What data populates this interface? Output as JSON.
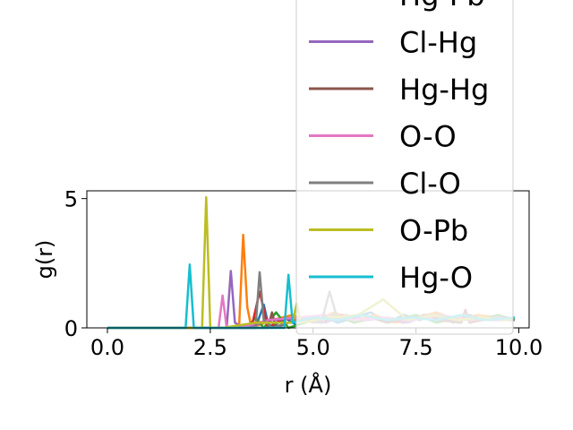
{
  "chart_data": {
    "type": "line",
    "title": "",
    "xlabel": "r (Å)",
    "ylabel": "g(r)",
    "xlim": [
      -0.5,
      10.25
    ],
    "ylim": [
      0,
      5.3
    ],
    "xticks": [
      0.0,
      2.5,
      5.0,
      7.5,
      10.0
    ],
    "xtick_labels": [
      "0.0",
      "2.5",
      "5.0",
      "7.5",
      "10.0"
    ],
    "yticks": [
      0,
      5
    ],
    "ytick_labels": [
      "0",
      "5"
    ],
    "grid": false,
    "legend_position": "top-right",
    "series": [
      {
        "name": "",
        "color": "#1f77b4",
        "x": [
          0,
          3.6,
          3.8,
          3.9,
          4.0,
          4.3,
          4.6,
          4.9,
          5.2,
          5.6,
          6.0,
          6.4,
          6.8,
          7.2,
          7.6,
          8.0,
          8.4,
          8.8,
          9.2,
          9.6,
          9.9
        ],
        "y": [
          0,
          0,
          0.9,
          0.2,
          0,
          0.4,
          0.1,
          0.3,
          0.5,
          0.2,
          0.4,
          0.6,
          0.2,
          0.5,
          0.3,
          0.6,
          0.2,
          0.5,
          0.3,
          0.4,
          0.3
        ]
      },
      {
        "name": "",
        "color": "#ff7f0e",
        "x": [
          0,
          3.2,
          3.3,
          3.4,
          3.5,
          4.0,
          4.5,
          5.0,
          5.5,
          6.0,
          6.5,
          7.0,
          7.5,
          8.0,
          8.5,
          9.0,
          9.5,
          9.9
        ],
        "y": [
          0,
          0,
          3.6,
          0.8,
          0,
          0.3,
          0.5,
          0.2,
          0.6,
          0.3,
          0.5,
          0.2,
          0.4,
          0.6,
          0.3,
          0.5,
          0.4,
          0.3
        ]
      },
      {
        "name": "",
        "color": "#2ca02c",
        "x": [
          0,
          3.4,
          3.6,
          3.8,
          4.1,
          4.4,
          5.0,
          5.5,
          6.0,
          6.5,
          7.0,
          7.5,
          8.0,
          8.5,
          9.0,
          9.5,
          9.9
        ],
        "y": [
          0,
          0,
          0.4,
          0,
          0.6,
          0,
          0.3,
          0.5,
          0.2,
          0.4,
          0.3,
          0.5,
          0.2,
          0.4,
          0.3,
          0.5,
          0.3
        ]
      },
      {
        "name": "Hg-Pb",
        "color": "#d62728",
        "x": [
          0,
          3.5,
          3.7,
          3.9,
          4.2,
          4.7,
          5.2,
          5.7,
          6.2,
          6.7,
          7.2,
          7.7,
          8.2,
          8.7,
          9.2,
          9.7,
          9.9
        ],
        "y": [
          0,
          0,
          1.4,
          0,
          0.3,
          0.4,
          0.2,
          0.5,
          0.3,
          0.4,
          0.2,
          0.5,
          0.3,
          0.4,
          0.3,
          0.4,
          0.3
        ]
      },
      {
        "name": "Cl-Hg",
        "color": "#9467bd",
        "x": [
          0,
          2.9,
          3.0,
          3.1,
          3.3,
          4.0,
          4.8,
          5.3,
          5.8,
          6.3,
          6.8,
          7.3,
          7.8,
          8.3,
          8.8,
          9.3,
          9.9
        ],
        "y": [
          0,
          0,
          2.2,
          0.2,
          0,
          0.3,
          0.4,
          0.2,
          0.5,
          0.3,
          0.4,
          0.2,
          0.5,
          0.3,
          0.4,
          0.3,
          0.3
        ]
      },
      {
        "name": "Hg-Hg",
        "color": "#8c564b",
        "x": [
          0,
          3.9,
          4.0,
          4.1,
          4.4,
          5.0,
          5.6,
          6.2,
          6.8,
          7.4,
          8.0,
          8.6,
          8.7,
          8.8,
          9.4,
          9.9
        ],
        "y": [
          0,
          0,
          0.6,
          0,
          0.2,
          0.4,
          0.3,
          0.5,
          0.2,
          0.4,
          0.3,
          0.2,
          0.7,
          0.2,
          0.4,
          0.3
        ]
      },
      {
        "name": "O-O",
        "color": "#e377c2",
        "x": [
          0,
          2.7,
          2.8,
          2.9,
          3.2,
          3.9,
          4.6,
          5.3,
          6.0,
          6.7,
          7.4,
          8.1,
          8.8,
          9.5,
          9.9
        ],
        "y": [
          0,
          0,
          1.25,
          0,
          0,
          0.3,
          0.4,
          0.5,
          0.3,
          0.4,
          0.3,
          0.5,
          0.3,
          0.4,
          0.3
        ]
      },
      {
        "name": "Cl-O",
        "color": "#7f7f7f",
        "x": [
          0,
          3.6,
          3.7,
          3.8,
          4.0,
          4.6,
          5.2,
          5.4,
          5.6,
          6.2,
          6.8,
          7.4,
          8.0,
          8.6,
          9.2,
          9.9
        ],
        "y": [
          0,
          0,
          2.15,
          0.3,
          0,
          0.3,
          0.2,
          1.4,
          0.3,
          0.5,
          0.3,
          0.4,
          0.5,
          0.3,
          0.4,
          0.3
        ]
      },
      {
        "name": "O-Pb",
        "color": "#bcbd22",
        "x": [
          0,
          2.3,
          2.4,
          2.5,
          2.8,
          3.6,
          4.5,
          4.6,
          4.7,
          5.4,
          6.1,
          6.7,
          7.3,
          7.9,
          8.5,
          9.1,
          9.7,
          9.9
        ],
        "y": [
          0,
          0,
          5.05,
          0,
          0,
          0.2,
          0.2,
          0.95,
          0.2,
          0.4,
          0.5,
          1.1,
          0.3,
          0.5,
          0.3,
          0.4,
          0.3,
          0.4
        ]
      },
      {
        "name": "Hg-O",
        "color": "#17becf",
        "x": [
          0,
          1.9,
          2.0,
          2.1,
          2.4,
          3.5,
          4.3,
          4.4,
          4.5,
          5.0,
          5.6,
          6.2,
          6.8,
          7.4,
          8.0,
          8.6,
          9.2,
          9.9
        ],
        "y": [
          0,
          0,
          2.45,
          0,
          0,
          0,
          0,
          2.05,
          0.2,
          0.4,
          0.3,
          0.5,
          0.3,
          0.4,
          0.3,
          0.5,
          0.3,
          0.4
        ]
      }
    ]
  }
}
